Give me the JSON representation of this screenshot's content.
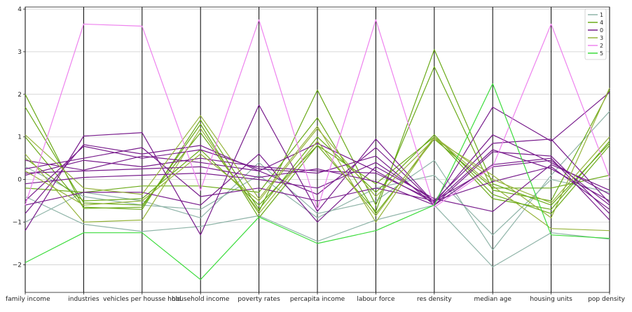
{
  "chart_data": {
    "type": "parallel_coordinates",
    "axes": [
      "family income",
      "industries",
      "vehicles per housse hold",
      "household income",
      "poverty rates",
      "percapita income",
      "labour force",
      "res density",
      "median age",
      "housing units",
      "pop density"
    ],
    "ylim": [
      -2.65,
      4.05
    ],
    "yticks": [
      -2,
      -1,
      0,
      1,
      2,
      3,
      4
    ],
    "ytick_labels": [
      "−2",
      "−1",
      "0",
      "1",
      "2",
      "3",
      "4"
    ],
    "grid": true,
    "legend_position": "top-right",
    "legend": [
      {
        "label": "1",
        "color": "#8fb4a8"
      },
      {
        "label": "4",
        "color": "#6aaa18"
      },
      {
        "label": "0",
        "color": "#781c8c"
      },
      {
        "label": "3",
        "color": "#96b43c"
      },
      {
        "label": "2",
        "color": "#ee82ee"
      },
      {
        "label": "5",
        "color": "#3cdc3c"
      }
    ],
    "series": [
      {
        "name": "1",
        "values": [
          -0.4,
          -1.05,
          -1.22,
          -1.1,
          -0.85,
          -1.45,
          -0.95,
          -0.6,
          -2.05,
          -1.25,
          -1.4
        ]
      },
      {
        "name": "1",
        "values": [
          -1.0,
          -0.3,
          -0.5,
          -0.9,
          0.4,
          -0.8,
          -0.5,
          0.45,
          -1.65,
          0.1,
          1.6
        ]
      },
      {
        "name": "1",
        "values": [
          0.3,
          -0.4,
          -0.6,
          -0.7,
          0.1,
          -0.9,
          -0.2,
          0.1,
          -1.3,
          0.0,
          -0.3
        ]
      },
      {
        "name": "4",
        "values": [
          2.0,
          -0.68,
          -0.65,
          1.3,
          -0.9,
          0.8,
          -0.75,
          3.05,
          -0.1,
          -0.6,
          0.85
        ]
      },
      {
        "name": "4",
        "values": [
          1.7,
          -0.55,
          -0.6,
          1.1,
          -0.75,
          2.1,
          -0.6,
          2.65,
          -0.25,
          -0.5,
          2.1
        ]
      },
      {
        "name": "4",
        "values": [
          1.0,
          -0.65,
          -0.7,
          1.4,
          -0.7,
          1.0,
          -0.3,
          1.05,
          -0.35,
          -0.8,
          0.8
        ]
      },
      {
        "name": "4",
        "values": [
          0.5,
          -0.5,
          -0.45,
          0.7,
          -0.6,
          0.8,
          -0.1,
          1.0,
          -0.45,
          -0.7,
          0.9
        ]
      },
      {
        "name": "4",
        "values": [
          -0.2,
          -0.3,
          -0.15,
          -0.15,
          -0.3,
          1.45,
          -0.8,
          0.95,
          -0.2,
          -0.2,
          0.1
        ]
      },
      {
        "name": "0",
        "values": [
          -1.2,
          1.02,
          1.1,
          -1.3,
          1.75,
          -0.75,
          0.95,
          -0.55,
          1.7,
          0.9,
          2.05
        ]
      },
      {
        "name": "0",
        "values": [
          -0.8,
          0.82,
          0.6,
          0.8,
          0.2,
          -0.35,
          0.75,
          -0.55,
          1.05,
          0.4,
          -0.35
        ]
      },
      {
        "name": "0",
        "values": [
          -0.5,
          0.78,
          0.5,
          0.7,
          0.25,
          0.15,
          0.55,
          -0.6,
          0.65,
          0.55,
          -0.8
        ]
      },
      {
        "name": "0",
        "values": [
          0.45,
          0.22,
          0.55,
          0.4,
          0.2,
          0.85,
          0.2,
          -0.55,
          0.7,
          0.25,
          -0.5
        ]
      },
      {
        "name": "0",
        "values": [
          0.1,
          0.45,
          0.3,
          0.5,
          0.3,
          0.2,
          0.15,
          -0.5,
          0.85,
          0.95,
          -0.55
        ]
      },
      {
        "name": "0",
        "values": [
          0.15,
          0.2,
          0.25,
          0.3,
          0.05,
          0.25,
          -0.05,
          -0.6,
          0.35,
          0.5,
          -0.95
        ]
      },
      {
        "name": "0",
        "values": [
          -0.1,
          0.05,
          0.1,
          0.15,
          0.0,
          -0.2,
          0.4,
          -0.5,
          -0.05,
          0.3,
          -0.7
        ]
      },
      {
        "name": "0",
        "values": [
          -0.6,
          -0.3,
          -0.3,
          -0.6,
          0.6,
          -1.0,
          0.3,
          -0.45,
          -0.75,
          0.35,
          -0.25
        ]
      },
      {
        "name": "0",
        "values": [
          0.25,
          0.5,
          0.75,
          -0.4,
          -0.2,
          -0.5,
          -0.2,
          -0.5,
          0.3,
          0.45,
          -0.6
        ]
      },
      {
        "name": "3",
        "values": [
          1.05,
          -0.2,
          -0.35,
          1.5,
          -0.45,
          1.25,
          -1.0,
          1.0,
          0.0,
          -0.55,
          1.0
        ]
      },
      {
        "name": "3",
        "values": [
          0.6,
          -1.0,
          -0.95,
          1.2,
          -0.8,
          0.9,
          -0.85,
          1.0,
          -0.15,
          -1.15,
          -1.2
        ]
      },
      {
        "name": "3",
        "values": [
          0.2,
          -0.6,
          -0.5,
          0.6,
          -0.5,
          1.2,
          -0.4,
          0.95,
          0.1,
          -0.9,
          2.15
        ]
      },
      {
        "name": "2",
        "values": [
          -0.6,
          3.65,
          3.6,
          -0.25,
          3.75,
          -0.7,
          3.75,
          -0.65,
          0.3,
          3.65,
          0.05
        ]
      },
      {
        "name": "5",
        "values": [
          -1.95,
          -1.25,
          -1.25,
          -2.35,
          -0.88,
          -1.5,
          -1.2,
          -0.6,
          2.25,
          -1.3,
          -1.38
        ]
      }
    ]
  }
}
